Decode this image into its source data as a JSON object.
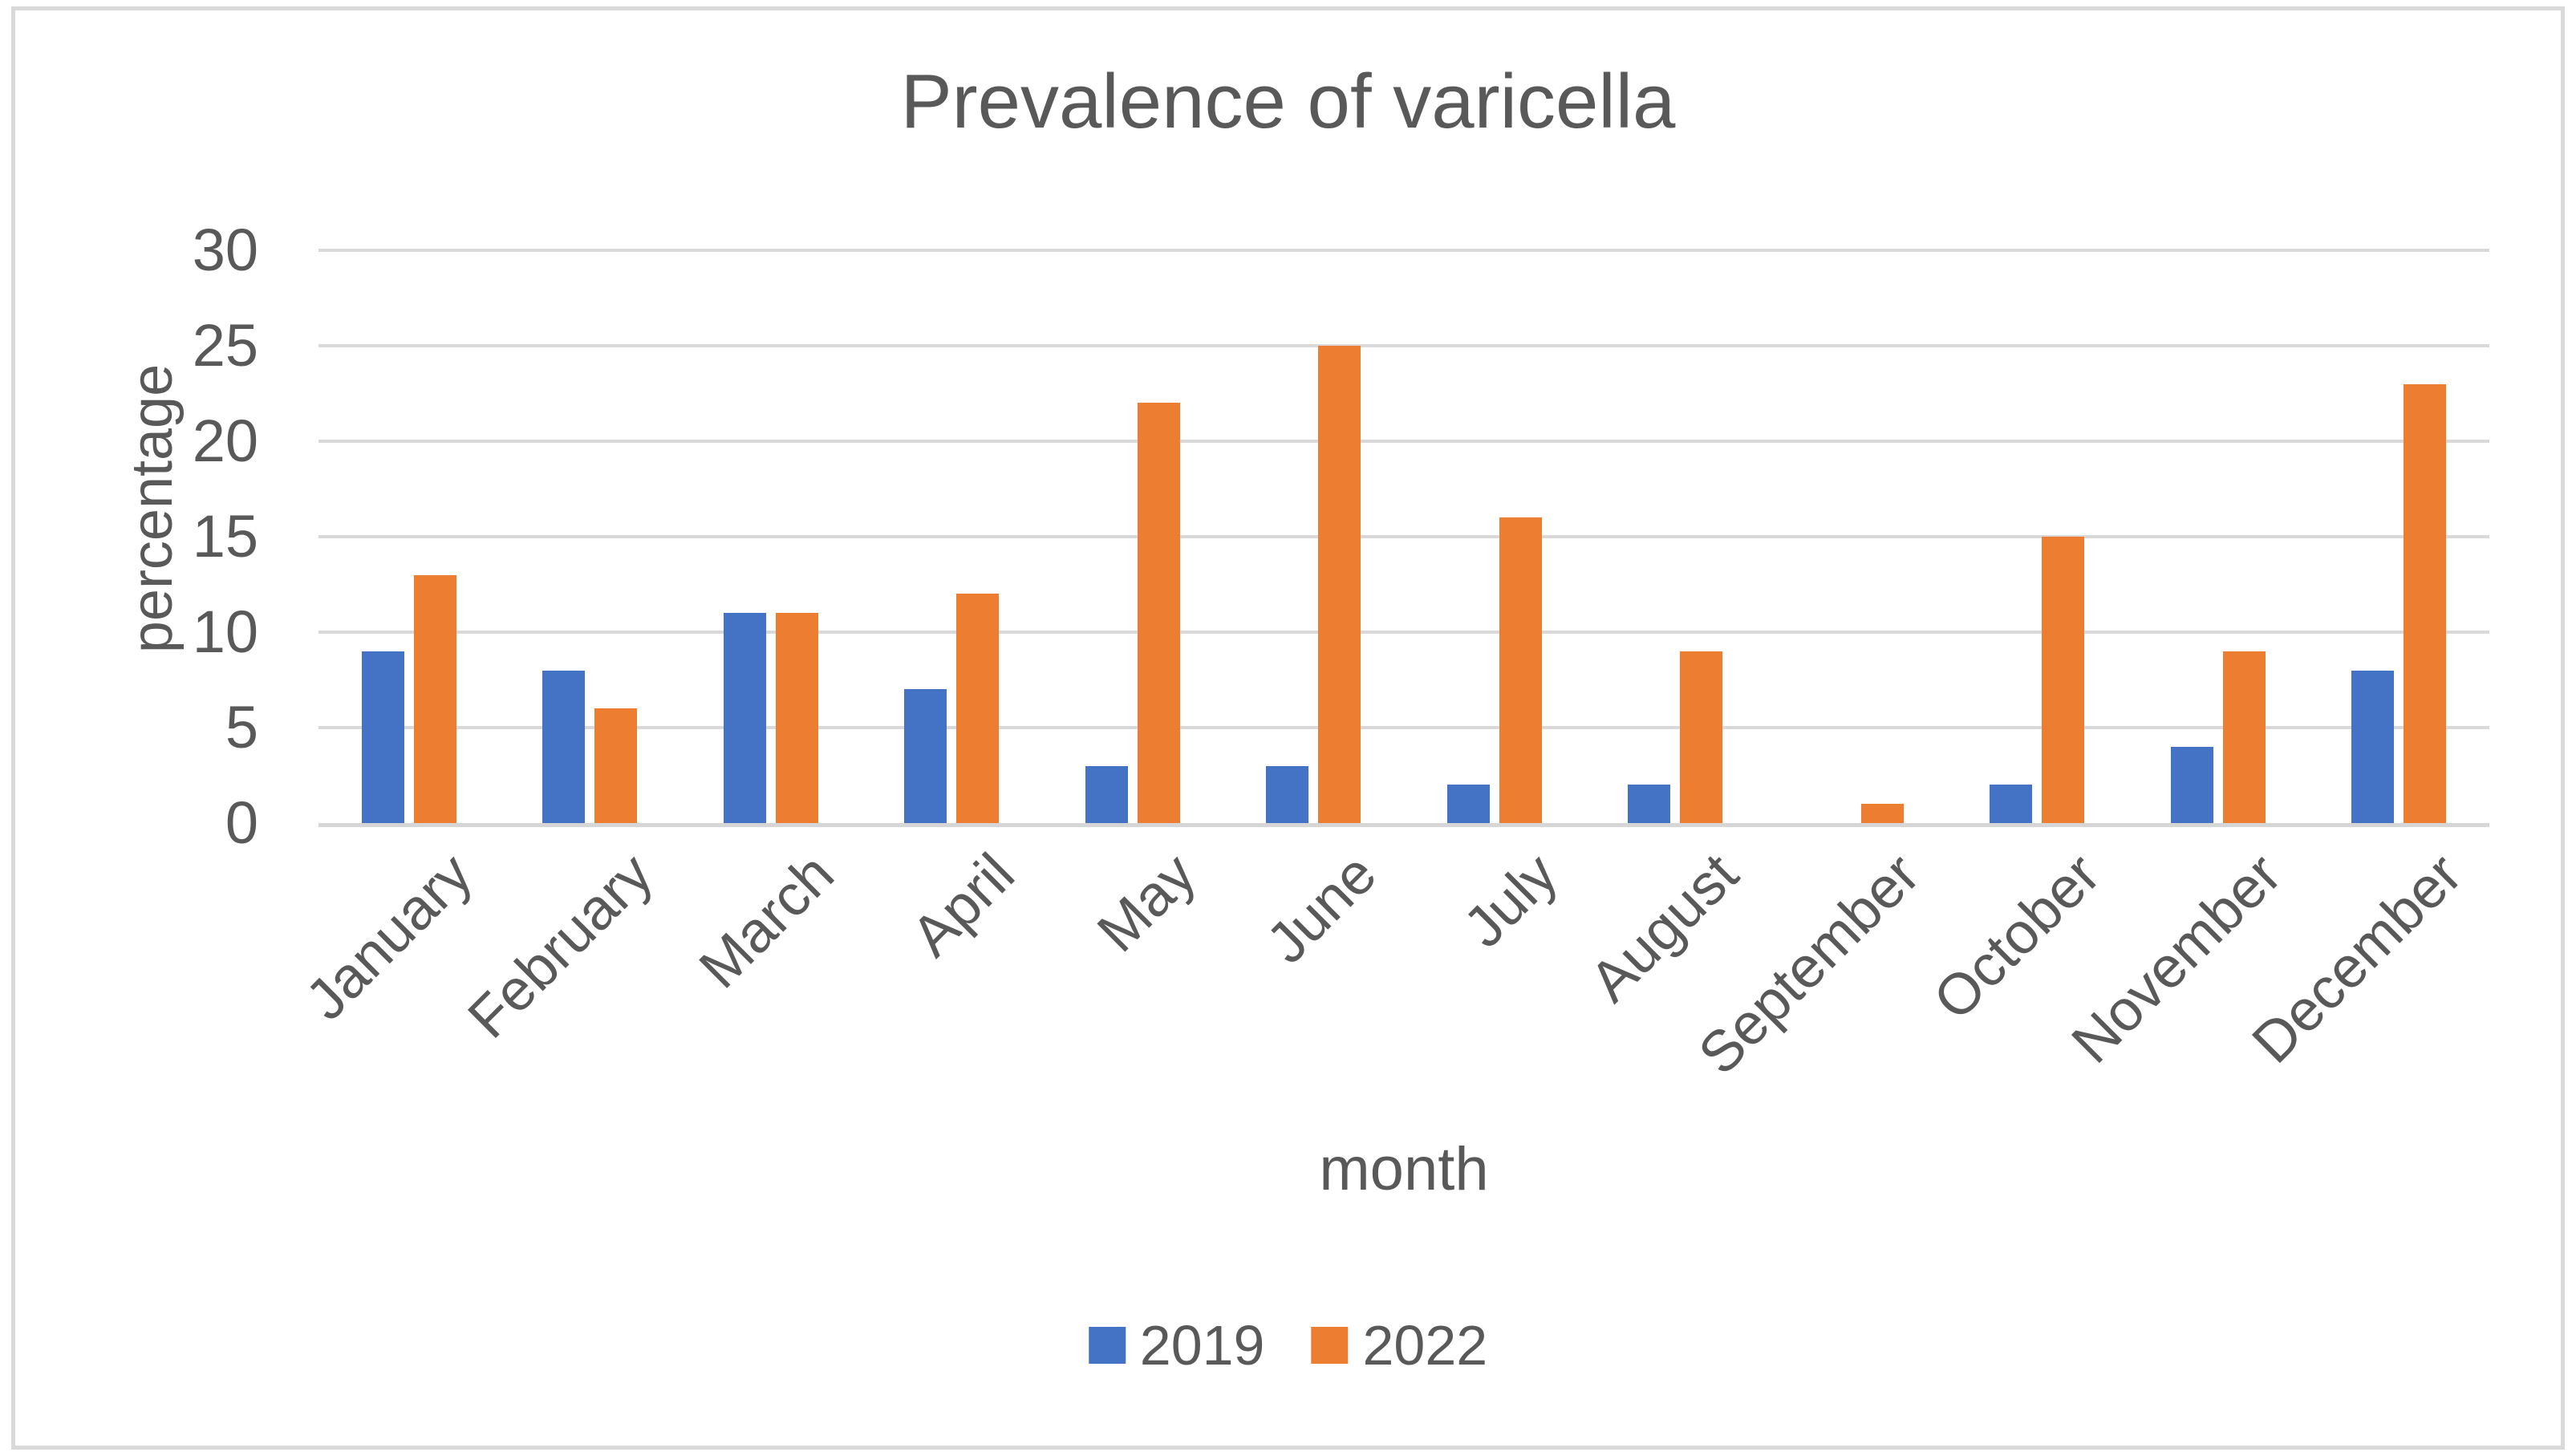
{
  "chart": {
    "title": "Prevalence of varicella",
    "y_axis_title": "percentage",
    "x_axis_title": "month",
    "legend": [
      "2019",
      "2022"
    ]
  },
  "chart_data": {
    "type": "bar",
    "title": "Prevalence of varicella",
    "xlabel": "month",
    "ylabel": "percentage",
    "categories": [
      "January",
      "February",
      "March",
      "April",
      "May",
      "June",
      "July",
      "August",
      "September",
      "October",
      "November",
      "December"
    ],
    "series": [
      {
        "name": "2019",
        "color": "#4472c4",
        "values": [
          9,
          8,
          11,
          7,
          3,
          3,
          2,
          2,
          0,
          2,
          4,
          8
        ]
      },
      {
        "name": "2022",
        "color": "#ed7d31",
        "values": [
          13,
          6,
          11,
          12,
          22,
          25,
          16,
          9,
          1,
          15,
          9,
          23
        ]
      }
    ],
    "ylim": [
      0,
      30
    ],
    "ytick_step": 5,
    "yticks": [
      0,
      5,
      10,
      15,
      20,
      25,
      30
    ],
    "grid": true,
    "legend_position": "bottom",
    "colors": {
      "text": "#595959",
      "gridline": "#d9d9d9",
      "background": "#ffffff",
      "series_2019": "#4472c4",
      "series_2022": "#ed7d31"
    }
  }
}
